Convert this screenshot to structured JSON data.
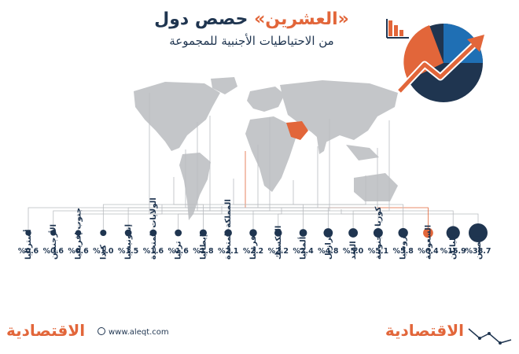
{
  "header": {
    "title_prefix": "حصص دول",
    "title_highlight": "«العشرين»",
    "subtitle": "من الاحتياطيات الأجنبية للمجموعة"
  },
  "footer": {
    "url": "www.aleqt.com",
    "brand": "الاقتصادية"
  },
  "colors": {
    "navy": "#1f3550",
    "accent": "#e2663a",
    "map": "#c4c6c9",
    "line": "#b9bcc0"
  },
  "chart_data": {
    "type": "bubble",
    "title": "حصص دول «العشرين» من الاحتياطيات الأجنبية للمجموعة",
    "unit": "%",
    "highlight": "السعودية",
    "categories": [
      "الصين",
      "اليابان",
      "السعودية",
      "روسيا",
      "كوريا الجنوبية",
      "الهند",
      "البرازيل",
      "ألمانيا",
      "المكسيك",
      "فرنسا",
      "المملكة المتحدة",
      "إيطاليا",
      "تركيا",
      "الولايات المتحدة",
      "إندونيسيا",
      "كندا",
      "جنوب إفريقيا",
      "الأرجنتين",
      "أستراليا"
    ],
    "values": [
      38.7,
      15.9,
      6.4,
      5.8,
      5.1,
      5.0,
      4.8,
      2.4,
      2.2,
      2.2,
      2.1,
      1.8,
      1.6,
      1.6,
      1.5,
      1.0,
      0.6,
      0.6,
      0.6
    ],
    "value_labels": [
      "%38.7",
      "%15.9",
      "%6.4",
      "%5.8",
      "%5.1",
      "%5.0",
      "%4.8",
      "%2.4",
      "%2.2",
      "%2.2",
      "%2.1",
      "%1.8",
      "%1.6",
      "%1.6",
      "%1.5",
      "%1.0",
      "%0.6",
      "%0.6",
      "%0.6"
    ]
  }
}
